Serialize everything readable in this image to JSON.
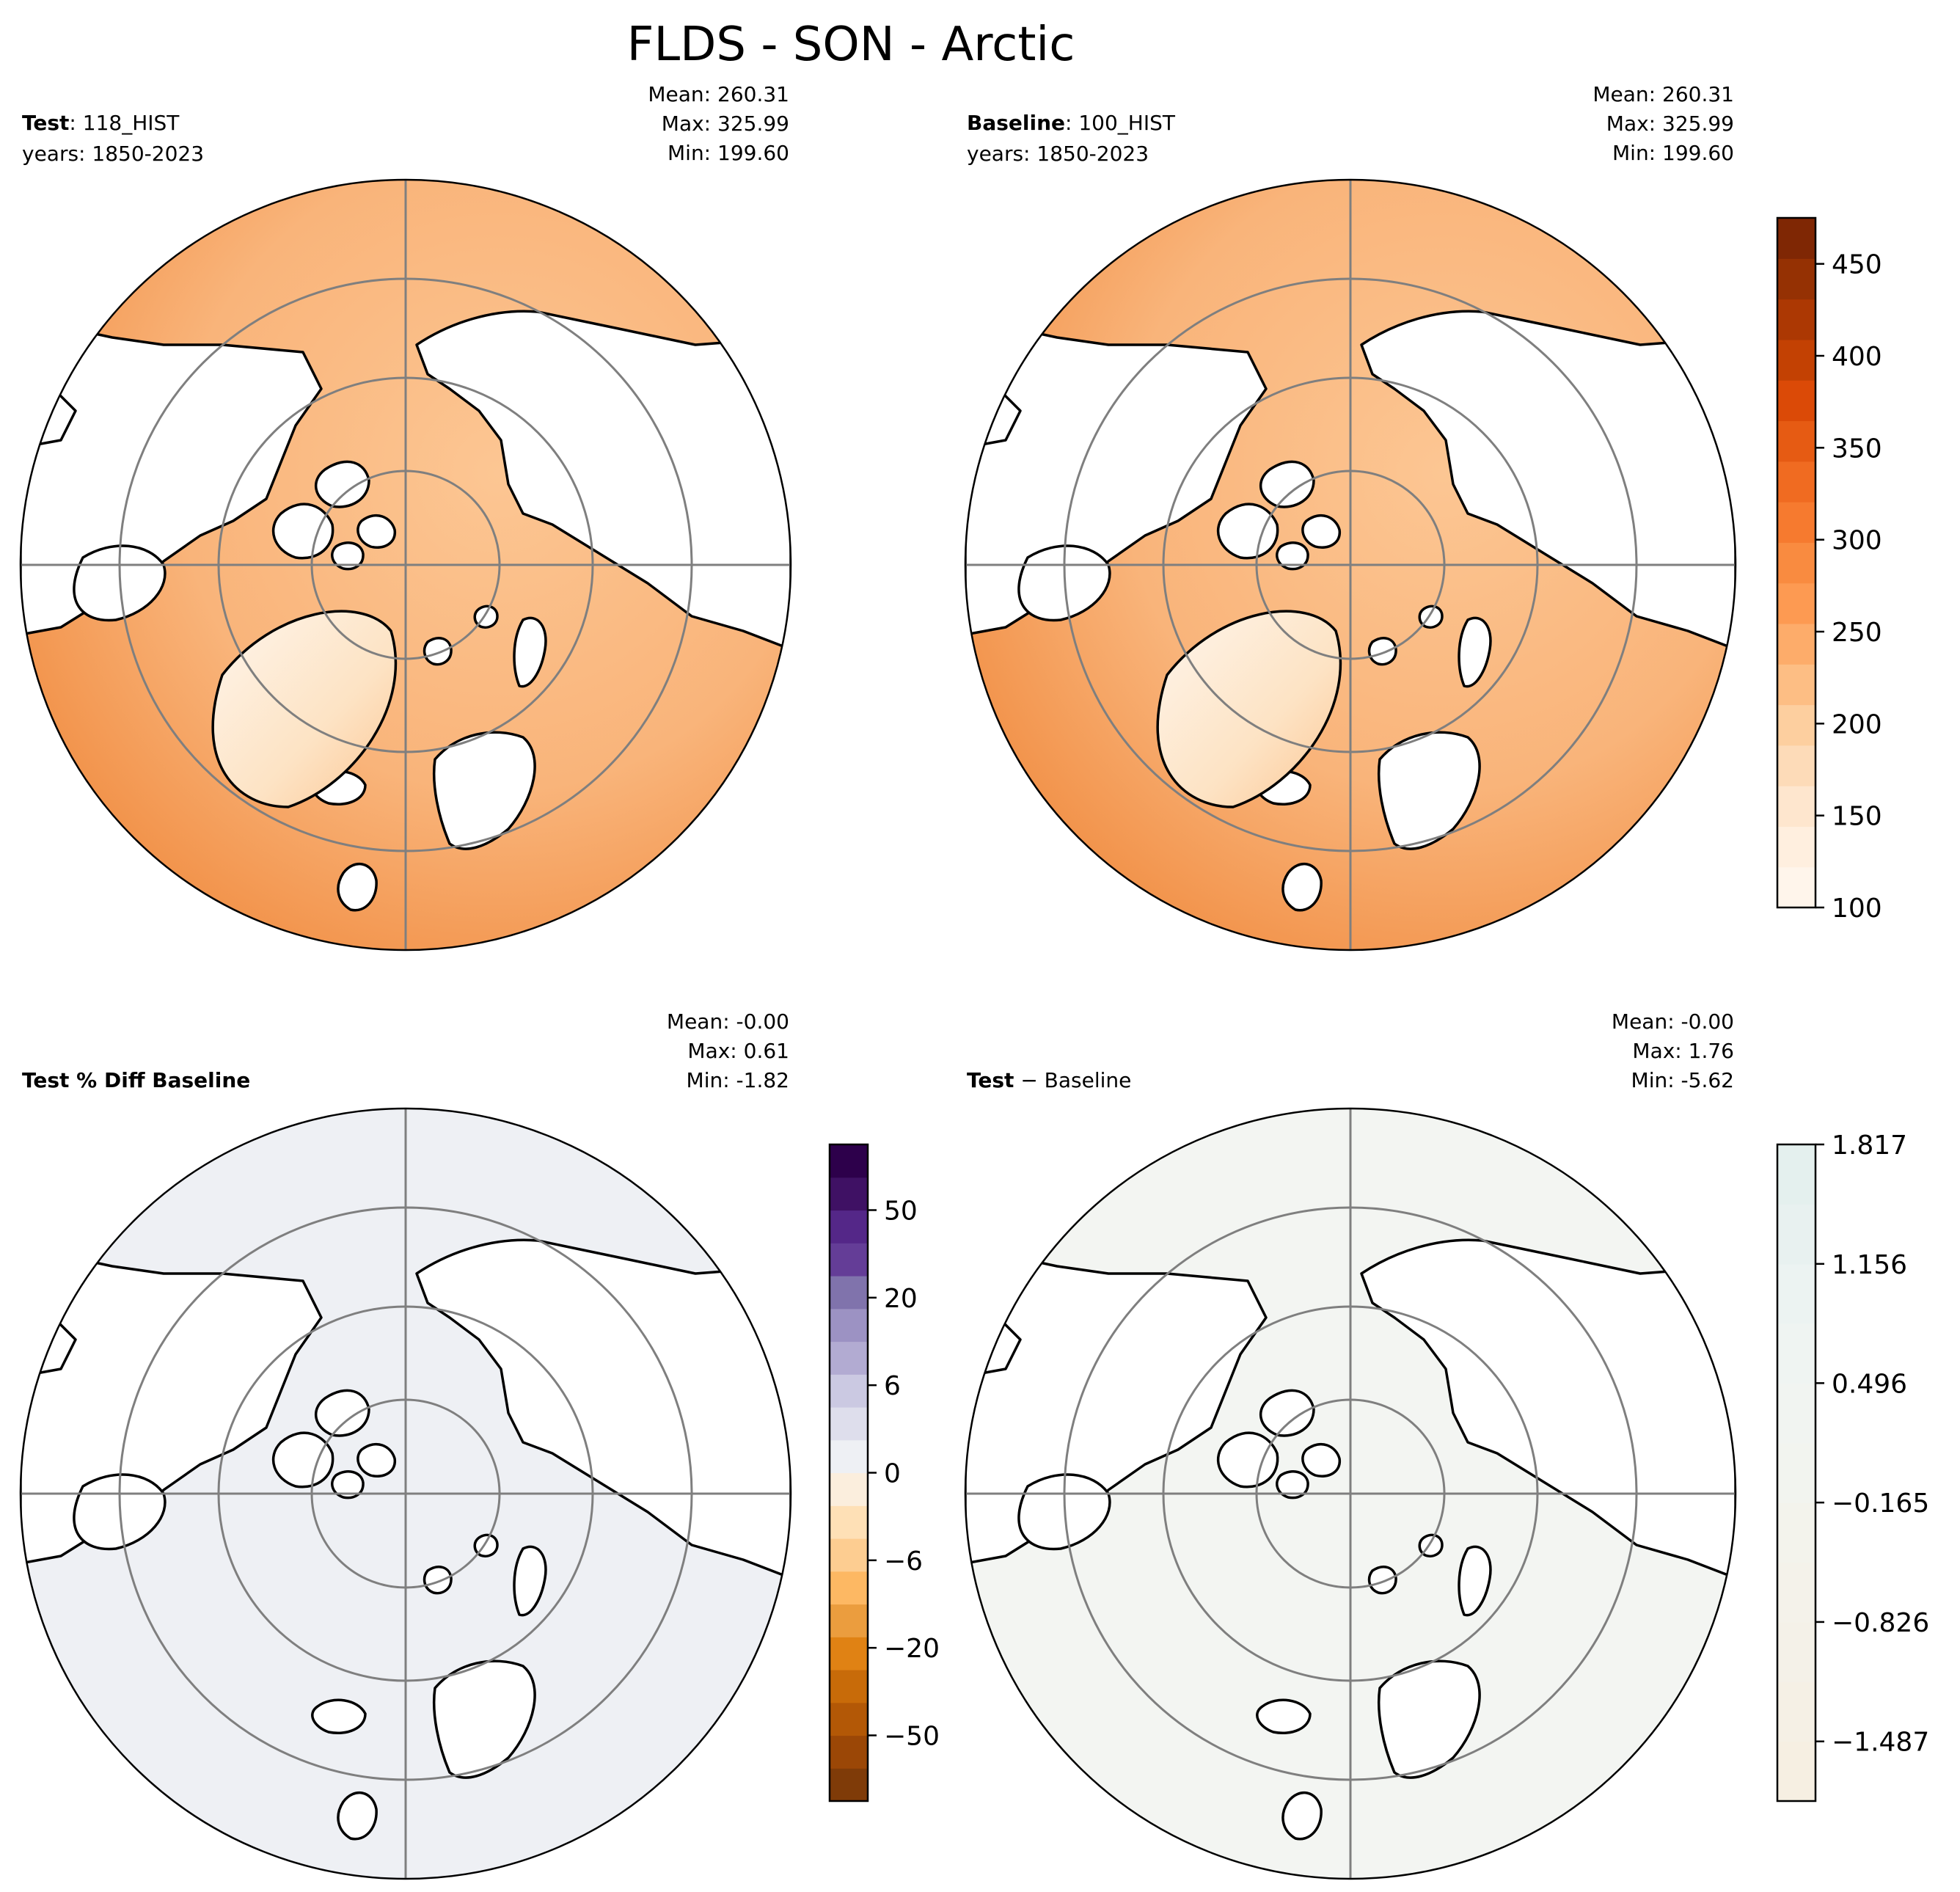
{
  "figure": {
    "title": "FLDS - SON - Arctic"
  },
  "chart_data": [
    {
      "id": "test",
      "type": "heatmap",
      "projection": "north-polar-stereographic",
      "label_bold": "Test",
      "label_rest": ": 118_HIST",
      "years": "years: 1850-2023",
      "stats": {
        "mean": "Mean: 260.31",
        "max": "Max: 325.99",
        "min": "Min: 199.60"
      },
      "fill": [
        "#f08a3e",
        "#f7aa6c",
        "#fcc693",
        "#fde3c4"
      ]
    },
    {
      "id": "baseline",
      "type": "heatmap",
      "projection": "north-polar-stereographic",
      "label_bold": "Baseline",
      "label_rest": ": 100_HIST",
      "years": "years: 1850-2023",
      "stats": {
        "mean": "Mean: 260.31",
        "max": "Max: 325.99",
        "min": "Min: 199.60"
      },
      "fill": [
        "#f08a3e",
        "#f7aa6c",
        "#fcc693",
        "#fde3c4"
      ],
      "colorbar": {
        "range": [
          100,
          475
        ],
        "ticks": [
          "100",
          "150",
          "200",
          "250",
          "300",
          "350",
          "400",
          "450"
        ],
        "tick_values": [
          100,
          150,
          200,
          250,
          300,
          350,
          400,
          450
        ],
        "colors": [
          "#fff5eb",
          "#ffefdf",
          "#fee6ce",
          "#fddbb8",
          "#fdcf9f",
          "#fdbe84",
          "#fdac6a",
          "#fd9a52",
          "#f98b40",
          "#f67a2f",
          "#f06b21",
          "#e65b13",
          "#db4a07",
          "#c34103",
          "#ac3803",
          "#953103",
          "#7f2704"
        ]
      }
    },
    {
      "id": "pct-diff",
      "type": "heatmap",
      "projection": "north-polar-stereographic",
      "label_bold": "Test % Diff Baseline",
      "stats": {
        "mean": "Mean: -0.00",
        "max": "Max:  0.61",
        "min": "Min: -1.82"
      },
      "fill": [
        "#eef0f4"
      ],
      "colorbar": {
        "ticks": [
          "50",
          "20",
          "6",
          "0",
          "−6",
          "−20",
          "−50"
        ],
        "colors": [
          "#7f3b08",
          "#9b4706",
          "#b35806",
          "#c86b09",
          "#e08214",
          "#eb9d3e",
          "#fdb863",
          "#fdcd91",
          "#fee0b6",
          "#fbeedd",
          "#eef0f4",
          "#dedeec",
          "#cbc9e2",
          "#b2abd2",
          "#9c92c3",
          "#8073ac",
          "#643d97",
          "#542788",
          "#3f1164",
          "#2d004b"
        ]
      }
    },
    {
      "id": "abs-diff",
      "type": "heatmap",
      "projection": "north-polar-stereographic",
      "label_bold": "Test",
      "label_rest": " − Baseline",
      "stats": {
        "mean": "Mean: -0.00",
        "max": "Max:  1.76",
        "min": "Min: -5.62"
      },
      "fill": [
        "#f3f5f2"
      ],
      "colorbar": {
        "range": [
          -1.817,
          1.817
        ],
        "ticks": [
          "1.817",
          "1.156",
          "0.496",
          "−0.165",
          "−0.826",
          "−1.487"
        ],
        "tick_values": [
          1.817,
          1.156,
          0.496,
          -0.165,
          -0.826,
          -1.487
        ],
        "colors": [
          "#f6efe2",
          "#f5f0e5",
          "#f4f1e8",
          "#f4f2ea",
          "#f3f3ec",
          "#f2f4ef",
          "#f1f4f1",
          "#eff4f2",
          "#ecf3f2",
          "#e8f1f0",
          "#e4f0ee"
        ]
      }
    }
  ]
}
